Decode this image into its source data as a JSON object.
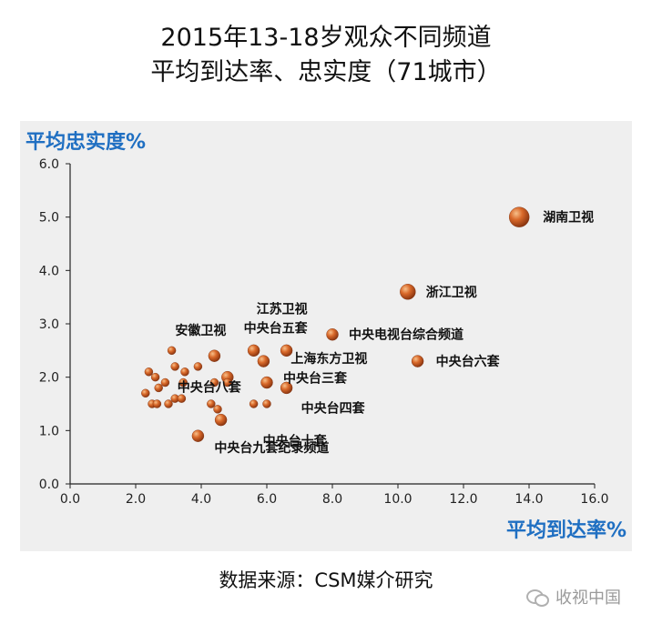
{
  "page": {
    "title_line1": "2015年13-18岁观众不同频道",
    "title_line2": "平均到达率、忠实度（71城市）",
    "source": "数据来源：CSM媒介研究",
    "watermark": "收视中国",
    "watermark_icon": "wechat-icon"
  },
  "chart_data": {
    "type": "scatter",
    "title": "2015年13-18岁观众不同频道 平均到达率、忠实度（71城市）",
    "xlabel": "平均到达率%",
    "ylabel": "平均忠实度%",
    "xlim": [
      0,
      16
    ],
    "ylim": [
      0,
      6
    ],
    "xticks": [
      0,
      2,
      4,
      6,
      8,
      10,
      12,
      14,
      16
    ],
    "yticks": [
      0,
      1,
      2,
      3,
      4,
      5,
      6
    ],
    "xtick_labels": [
      "0.0",
      "2.0",
      "4.0",
      "6.0",
      "8.0",
      "10.0",
      "12.0",
      "14.0",
      "16.0"
    ],
    "ytick_labels": [
      "0.0",
      "1.0",
      "2.0",
      "3.0",
      "4.0",
      "5.0",
      "6.0"
    ],
    "grid": false,
    "marker_color": "#c2561b",
    "points": [
      {
        "x": 13.7,
        "y": 5.0,
        "label": "湖南卫视"
      },
      {
        "x": 10.3,
        "y": 3.6,
        "label": "浙江卫视"
      },
      {
        "x": 8.0,
        "y": 2.8,
        "label": "中央电视台综合频道"
      },
      {
        "x": 10.6,
        "y": 2.3,
        "label": "中央台六套"
      },
      {
        "x": 6.6,
        "y": 2.5,
        "label": "江苏卫视"
      },
      {
        "x": 5.6,
        "y": 2.5,
        "label": "中央台五套"
      },
      {
        "x": 4.4,
        "y": 2.4,
        "label": "安徽卫视"
      },
      {
        "x": 5.9,
        "y": 2.3,
        "label": "上海东方卫视"
      },
      {
        "x": 4.8,
        "y": 2.0,
        "label": "中央台八套"
      },
      {
        "x": 6.0,
        "y": 1.9,
        "label": "中央台三套"
      },
      {
        "x": 6.6,
        "y": 1.8,
        "label": "中央台四套"
      },
      {
        "x": 4.6,
        "y": 1.2,
        "label": "中央台十套"
      },
      {
        "x": 3.9,
        "y": 0.9,
        "label": "中央台九套纪录频道"
      },
      {
        "x": 3.1,
        "y": 2.5,
        "label": ""
      },
      {
        "x": 2.4,
        "y": 2.1,
        "label": ""
      },
      {
        "x": 2.6,
        "y": 2.0,
        "label": ""
      },
      {
        "x": 2.9,
        "y": 1.9,
        "label": ""
      },
      {
        "x": 2.7,
        "y": 1.8,
        "label": ""
      },
      {
        "x": 2.3,
        "y": 1.7,
        "label": ""
      },
      {
        "x": 3.2,
        "y": 1.6,
        "label": ""
      },
      {
        "x": 3.4,
        "y": 1.6,
        "label": ""
      },
      {
        "x": 2.5,
        "y": 1.5,
        "label": ""
      },
      {
        "x": 2.65,
        "y": 1.5,
        "label": ""
      },
      {
        "x": 3.0,
        "y": 1.5,
        "label": ""
      },
      {
        "x": 3.2,
        "y": 2.2,
        "label": ""
      },
      {
        "x": 3.5,
        "y": 2.1,
        "label": ""
      },
      {
        "x": 3.9,
        "y": 2.2,
        "label": ""
      },
      {
        "x": 3.45,
        "y": 1.9,
        "label": ""
      },
      {
        "x": 4.4,
        "y": 1.9,
        "label": ""
      },
      {
        "x": 4.8,
        "y": 1.9,
        "label": ""
      },
      {
        "x": 4.3,
        "y": 1.5,
        "label": ""
      },
      {
        "x": 4.5,
        "y": 1.4,
        "label": ""
      },
      {
        "x": 5.6,
        "y": 1.5,
        "label": ""
      },
      {
        "x": 6.0,
        "y": 1.5,
        "label": ""
      }
    ]
  }
}
